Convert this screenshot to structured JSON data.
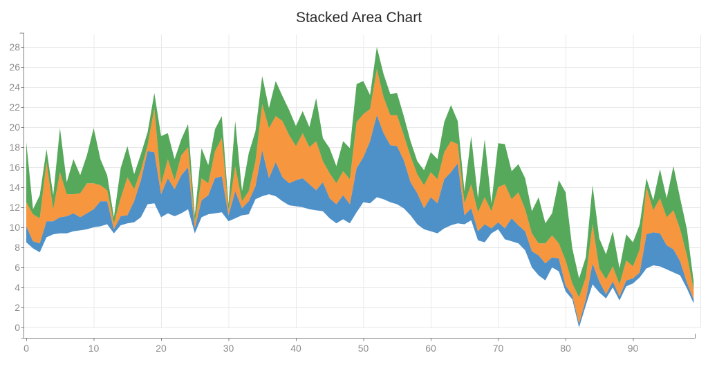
{
  "title": "Stacked Area Chart",
  "colors": {
    "background": "#ffffff",
    "title_text": "#2d2d2d",
    "tick_text": "#8b8b8b",
    "gridline": "#e8e8e8",
    "axis_line": "#7f7f7f"
  },
  "chart_data": {
    "type": "area",
    "stacked": true,
    "title": "Stacked Area Chart",
    "xlabel": "",
    "ylabel": "",
    "legend": false,
    "grid": true,
    "x_min": 0,
    "x_max": 99,
    "x_step": 1,
    "xlim": [
      0,
      100
    ],
    "ylim": [
      0,
      29.3
    ],
    "x_ticks": [
      0,
      10,
      20,
      30,
      40,
      50,
      60,
      70,
      80,
      90
    ],
    "y_ticks": [
      0,
      2,
      4,
      6,
      8,
      10,
      12,
      14,
      16,
      18,
      20,
      22,
      24,
      26,
      28
    ],
    "x_gridlines": [
      10,
      20,
      30,
      40,
      50,
      60,
      70,
      80,
      90,
      100
    ],
    "baseline_offset": [
      8.5,
      7.9,
      7.5,
      9.0,
      9.3,
      9.4,
      9.4,
      9.6,
      9.7,
      9.8,
      10.0,
      10.1,
      10.3,
      9.4,
      10.2,
      10.4,
      10.5,
      11.0,
      12.3,
      12.4,
      11.0,
      11.4,
      11.1,
      11.4,
      11.8,
      9.4,
      11.0,
      11.3,
      11.4,
      11.5,
      10.6,
      10.9,
      11.2,
      11.3,
      12.8,
      13.1,
      13.3,
      13.1,
      12.6,
      12.2,
      12.1,
      12.0,
      11.8,
      11.7,
      11.6,
      10.9,
      10.4,
      10.8,
      10.4,
      11.5,
      12.5,
      12.4,
      13.0,
      12.8,
      12.5,
      12.3,
      11.9,
      11.2,
      10.3,
      9.8,
      9.6,
      9.4,
      9.9,
      10.2,
      10.4,
      10.3,
      10.7,
      8.7,
      8.5,
      9.4,
      9.8,
      8.8,
      8.6,
      8.4,
      7.7,
      6.0,
      5.2,
      4.7,
      6.0,
      5.6,
      3.6,
      2.8,
      0.0,
      2.2,
      4.3,
      3.5,
      2.9,
      4.0,
      2.7,
      4.1,
      4.4,
      5.0,
      5.9,
      6.2,
      6.1,
      5.8,
      5.5,
      5.2,
      3.9,
      2.4
    ],
    "series": [
      {
        "name": "series-blue",
        "color": "#4E90C8",
        "values": [
          1.6,
          0.7,
          0.9,
          1.6,
          1.3,
          1.6,
          1.7,
          1.8,
          1.3,
          1.6,
          1.8,
          2.5,
          2.3,
          0.4,
          0.9,
          0.8,
          2.1,
          3.7,
          5.3,
          5.1,
          2.3,
          3.5,
          2.7,
          3.8,
          4.2,
          0.5,
          1.7,
          1.9,
          3.5,
          3.6,
          0.6,
          2.7,
          0.7,
          1.3,
          1.3,
          4.6,
          1.6,
          3.4,
          2.4,
          2.2,
          2.6,
          2.9,
          2.5,
          2.0,
          2.9,
          2.0,
          1.9,
          2.4,
          1.9,
          4.4,
          4.5,
          6.2,
          8.2,
          6.6,
          5.7,
          5.8,
          4.8,
          3.3,
          3.1,
          2.1,
          3.4,
          3.0,
          4.9,
          5.3,
          6.0,
          0.9,
          1.2,
          0.9,
          1.8,
          0.5,
          0.7,
          1.1,
          2.3,
          1.8,
          1.9,
          1.6,
          2.0,
          1.7,
          1.0,
          1.3,
          0.6,
          0.4,
          0.4,
          0.6,
          2.1,
          1.1,
          0.4,
          0.6,
          0.4,
          0.6,
          0.5,
          0.5,
          3.4,
          3.3,
          3.3,
          2.4,
          2.3,
          1.4,
          0.6,
          0.4
        ]
      },
      {
        "name": "series-orange",
        "color": "#F6963E",
        "values": [
          2.4,
          2.7,
          2.5,
          5.9,
          1.2,
          4.5,
          2.2,
          1.9,
          2.4,
          3.0,
          2.6,
          1.6,
          1.1,
          0.6,
          1.8,
          3.8,
          1.2,
          1.0,
          0.6,
          4.4,
          1.0,
          1.9,
          0.9,
          2.0,
          2.0,
          0.6,
          2.2,
          1.2,
          2.7,
          3.8,
          0.5,
          2.5,
          0.7,
          1.0,
          2.5,
          4.6,
          5.0,
          4.6,
          5.6,
          4.8,
          3.4,
          4.5,
          3.7,
          4.9,
          2.1,
          2.5,
          2.1,
          2.4,
          2.5,
          4.6,
          4.3,
          3.2,
          4.6,
          3.6,
          3.0,
          3.1,
          2.5,
          2.6,
          1.9,
          2.3,
          2.5,
          2.4,
          2.7,
          3.1,
          1.9,
          1.2,
          2.4,
          1.9,
          2.7,
          1.7,
          3.5,
          4.4,
          1.9,
          3.3,
          2.2,
          1.8,
          1.2,
          2.0,
          2.2,
          1.5,
          2.5,
          1.2,
          2.6,
          2.2,
          3.9,
          1.3,
          1.5,
          1.5,
          1.2,
          2.0,
          1.2,
          2.3,
          4.7,
          2.2,
          3.5,
          2.8,
          3.9,
          3.2,
          2.7,
          1.0
        ]
      },
      {
        "name": "series-green",
        "color": "#56A85A",
        "values": [
          6.0,
          0.5,
          2.3,
          1.3,
          1.4,
          4.4,
          1.2,
          3.5,
          1.8,
          2.8,
          5.5,
          2.6,
          1.5,
          0.6,
          3.0,
          3.1,
          1.5,
          1.6,
          1.3,
          1.5,
          4.8,
          2.6,
          2.1,
          1.6,
          2.3,
          0.7,
          3.0,
          1.8,
          2.2,
          2.2,
          0.6,
          4.5,
          1.0,
          3.8,
          3.0,
          2.8,
          2.0,
          3.5,
          2.5,
          2.5,
          2.0,
          2.2,
          2.0,
          4.3,
          2.3,
          2.5,
          1.7,
          3.0,
          3.1,
          3.8,
          3.3,
          1.4,
          2.2,
          2.3,
          2.1,
          2.2,
          1.9,
          1.5,
          1.3,
          1.5,
          2.0,
          2.0,
          3.0,
          3.6,
          2.3,
          1.2,
          4.8,
          1.4,
          5.8,
          0.8,
          4.4,
          4.0,
          2.8,
          2.8,
          3.1,
          2.2,
          4.6,
          2.0,
          2.2,
          6.3,
          6.8,
          3.5,
          1.9,
          2.0,
          3.9,
          3.0,
          2.5,
          3.5,
          1.6,
          2.6,
          2.4,
          2.5,
          0.9,
          1.0,
          2.9,
          1.9,
          4.4,
          3.1,
          2.6,
          0.8
        ]
      }
    ]
  }
}
